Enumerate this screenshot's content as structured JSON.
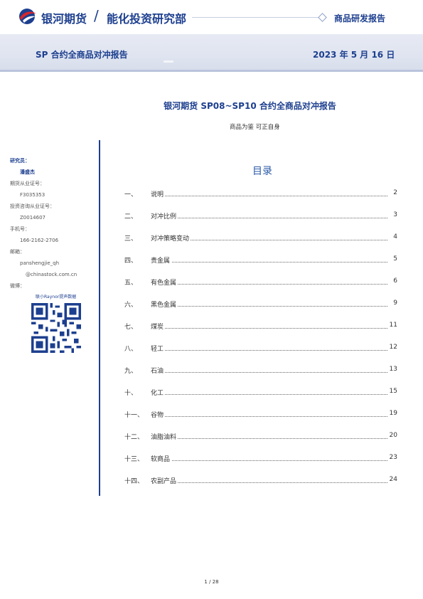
{
  "header": {
    "brand": "银河期货",
    "department": "能化投资研究部",
    "report_type": "商品研发报告"
  },
  "band": {
    "title": "SP 合约全商品对冲报告",
    "date": "2023 年 5 月 16 日"
  },
  "document": {
    "title": "银河期货 SP08~SP10 合约全商品对冲报告",
    "subtitle": "商品为鉴 可正自身"
  },
  "sidebar": {
    "researcher_label": "研究员：",
    "researcher_name": "潘盛杰",
    "futures_cert_label": "期货从业证号：",
    "futures_cert": "F3035353",
    "invest_cert_label": "投资咨询从业证号：",
    "invest_cert": "Z0014607",
    "phone_label": "手机号：",
    "phone": "166-2162-2706",
    "email_label": "邮箱：",
    "email_user": "panshengjie_qh",
    "email_domain": "@chinastock.com.cn",
    "wechat_label": "微博：",
    "wechat": "联小Raynor提声数据"
  },
  "toc": {
    "title": "目录",
    "items": [
      {
        "num": "一、",
        "text": "说明",
        "page": "2"
      },
      {
        "num": "二、",
        "text": "对冲比例",
        "page": "3"
      },
      {
        "num": "三、",
        "text": "对冲策略变动",
        "page": "4"
      },
      {
        "num": "四、",
        "text": "贵金属",
        "page": "5"
      },
      {
        "num": "五、",
        "text": "有色金属",
        "page": "6"
      },
      {
        "num": "六、",
        "text": "黑色金属",
        "page": "9"
      },
      {
        "num": "七、",
        "text": "煤炭",
        "page": "11"
      },
      {
        "num": "八、",
        "text": "轻工",
        "page": "12"
      },
      {
        "num": "九、",
        "text": "石油",
        "page": "13"
      },
      {
        "num": "十、",
        "text": "化工",
        "page": "15"
      },
      {
        "num": "十一、",
        "text": "谷物",
        "page": "19"
      },
      {
        "num": "十二、",
        "text": "油脂油料",
        "page": "20"
      },
      {
        "num": "十三、",
        "text": "软商品",
        "page": "23"
      },
      {
        "num": "十四、",
        "text": "农副产品",
        "page": "24"
      }
    ]
  },
  "footer": {
    "page_indicator": "1 / 28"
  },
  "colors": {
    "brand_blue": "#1d3f8f",
    "brand_red": "#d7262b",
    "toc_title": "#2b5aa8"
  }
}
